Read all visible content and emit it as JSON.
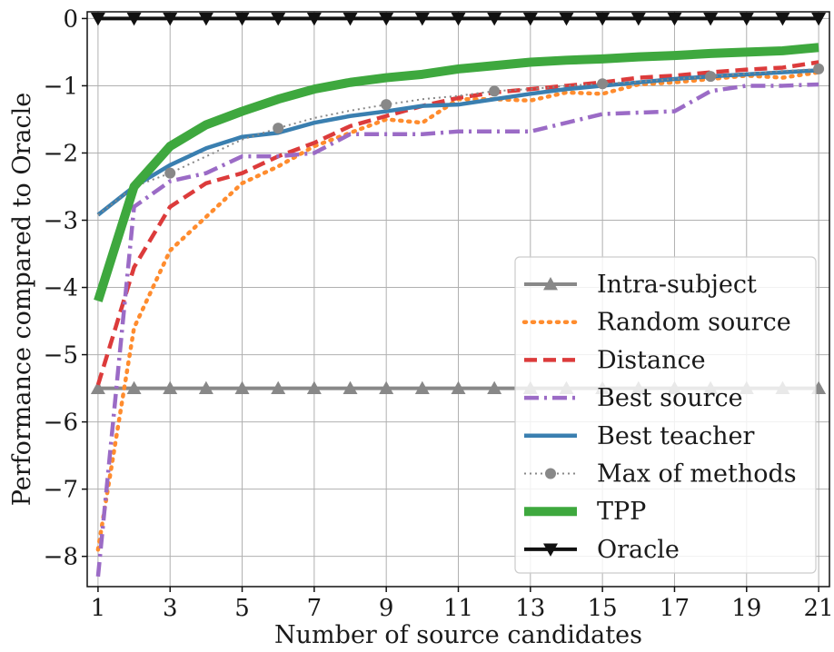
{
  "chart_data": {
    "type": "line",
    "xlabel": "Number of source candidates",
    "ylabel": "Performance compared to Oracle",
    "xlim": [
      0.7,
      21.3
    ],
    "ylim": [
      -8.45,
      0.1
    ],
    "xticks": [
      1,
      3,
      5,
      7,
      9,
      11,
      13,
      15,
      17,
      19,
      21
    ],
    "yticks": [
      0,
      -1,
      -2,
      -3,
      -4,
      -5,
      -6,
      -7,
      -8
    ],
    "ytick_labels": [
      "0",
      "−1",
      "−2",
      "−3",
      "−4",
      "−5",
      "−6",
      "−7",
      "−8"
    ],
    "grid": true,
    "legend_position": "lower-right",
    "x": [
      1,
      2,
      3,
      4,
      5,
      6,
      7,
      8,
      9,
      10,
      11,
      12,
      13,
      14,
      15,
      16,
      17,
      18,
      19,
      20,
      21
    ],
    "series": [
      {
        "name": "Intra-subject",
        "color": "#888888",
        "dash": "solid",
        "width": 4,
        "marker": "triangle-up",
        "values": [
          -5.5,
          -5.5,
          -5.5,
          -5.5,
          -5.5,
          -5.5,
          -5.5,
          -5.5,
          -5.5,
          -5.5,
          -5.5,
          -5.5,
          -5.5,
          -5.5,
          -5.5,
          -5.5,
          -5.5,
          -5.5,
          -5.5,
          -5.5,
          -5.5
        ]
      },
      {
        "name": "Random source",
        "color": "#ff8c2e",
        "dash": "dotted",
        "width": 4.5,
        "marker": "none",
        "values": [
          -7.9,
          -4.6,
          -3.45,
          -2.95,
          -2.45,
          -2.2,
          -1.9,
          -1.7,
          -1.5,
          -1.55,
          -1.2,
          -1.2,
          -1.22,
          -1.1,
          -1.12,
          -0.98,
          -0.95,
          -0.9,
          -0.85,
          -0.88,
          -0.8
        ]
      },
      {
        "name": "Distance",
        "color": "#dc3b3b",
        "dash": "dashed",
        "width": 4.5,
        "marker": "none",
        "values": [
          -5.45,
          -3.7,
          -2.8,
          -2.45,
          -2.3,
          -2.05,
          -1.85,
          -1.6,
          -1.45,
          -1.3,
          -1.18,
          -1.1,
          -1.05,
          -1.0,
          -0.95,
          -0.88,
          -0.85,
          -0.8,
          -0.76,
          -0.73,
          -0.65
        ]
      },
      {
        "name": "Best source",
        "color": "#9b6bc6",
        "dash": "dashdot",
        "width": 4.5,
        "marker": "none",
        "values": [
          -8.3,
          -2.8,
          -2.42,
          -2.3,
          -2.05,
          -2.05,
          -2.0,
          -1.72,
          -1.72,
          -1.72,
          -1.68,
          -1.68,
          -1.68,
          -1.55,
          -1.42,
          -1.4,
          -1.38,
          -1.08,
          -1.0,
          -1.0,
          -0.98
        ]
      },
      {
        "name": "Best teacher",
        "color": "#3a7fb0",
        "dash": "solid",
        "width": 4.5,
        "marker": "none",
        "values": [
          -2.92,
          -2.5,
          -2.18,
          -1.93,
          -1.76,
          -1.7,
          -1.55,
          -1.45,
          -1.38,
          -1.3,
          -1.28,
          -1.2,
          -1.12,
          -1.05,
          -1.0,
          -0.95,
          -0.9,
          -0.86,
          -0.83,
          -0.8,
          -0.77
        ]
      },
      {
        "name": "Max of methods",
        "color": "#888888",
        "dash": "dotted-thin",
        "width": 2,
        "marker": "circle",
        "marker_every": 3,
        "values": [
          -2.92,
          -2.5,
          -2.3,
          -2.05,
          -1.8,
          -1.63,
          -1.48,
          -1.37,
          -1.28,
          -1.2,
          -1.15,
          -1.08,
          -1.05,
          -1.0,
          -0.97,
          -0.94,
          -0.9,
          -0.86,
          -0.82,
          -0.78,
          -0.75
        ]
      },
      {
        "name": "TPP",
        "color": "#3ea83e",
        "dash": "solid",
        "width": 10,
        "marker": "none",
        "values": [
          -4.2,
          -2.5,
          -1.9,
          -1.58,
          -1.38,
          -1.2,
          -1.05,
          -0.95,
          -0.88,
          -0.83,
          -0.75,
          -0.7,
          -0.65,
          -0.62,
          -0.6,
          -0.57,
          -0.55,
          -0.52,
          -0.5,
          -0.48,
          -0.43
        ]
      },
      {
        "name": "Oracle",
        "color": "#111111",
        "dash": "solid",
        "width": 4,
        "marker": "triangle-down",
        "values": [
          0,
          0,
          0,
          0,
          0,
          0,
          0,
          0,
          0,
          0,
          0,
          0,
          0,
          0,
          0,
          0,
          0,
          0,
          0,
          0,
          0
        ]
      }
    ]
  }
}
